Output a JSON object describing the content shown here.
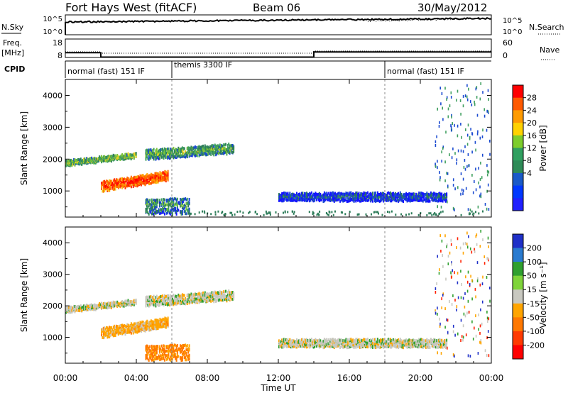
{
  "header": {
    "station": "Fort Hays West (fitACF)",
    "beam": "Beam 06",
    "date": "30/May/2012"
  },
  "panels": {
    "sky": {
      "label": "N.Sky",
      "left_ticks": [
        "10^5",
        "10^0"
      ],
      "right_ticks": [
        "10^5",
        "10^0"
      ],
      "right_label": "N.Search"
    },
    "freq": {
      "label": "Freq.",
      "unit": "[MHz]",
      "left_ticks": [
        "18",
        "8"
      ],
      "right_ticks": [
        "60",
        "0"
      ],
      "right_label": "Nave"
    },
    "cpid": {
      "label": "CPID",
      "modes": [
        {
          "label": "normal (fast) 151 IF",
          "start": 0,
          "end": 6
        },
        {
          "label": "themis 3300 IF",
          "start": 6,
          "end": 18
        },
        {
          "label": "normal (fast) 151 IF",
          "start": 18,
          "end": 24
        }
      ]
    }
  },
  "colorbars": {
    "power": {
      "title": "Power [dB]",
      "ticks": [
        "28",
        "24",
        "20",
        "16",
        "12",
        "8",
        "4"
      ],
      "colors": [
        "#ff0000",
        "#ff5a00",
        "#ff9b00",
        "#ffd200",
        "#7dcd2c",
        "#30a060",
        "#2e8b57",
        "#1a5ac8",
        "#0038ff",
        "#2020ff"
      ]
    },
    "velocity": {
      "title": "Velocity [m s⁻¹]",
      "ticks": [
        "200",
        "100",
        "50",
        "15",
        "-15",
        "-50",
        "-100",
        "-200"
      ],
      "colors": [
        "#1f30c8",
        "#2a7bd0",
        "#2fa02f",
        "#7fd43a",
        "#c8c8c0",
        "#ffa500",
        "#ff7800",
        "#ff3a00",
        "#ff0000"
      ]
    }
  },
  "axes": {
    "yaxis_label": "Slant Range [km]",
    "y_ticks": [
      "4000",
      "3000",
      "2000",
      "1000"
    ],
    "xaxis_label": "Time UT",
    "x_ticks": [
      "00:00",
      "04:00",
      "08:00",
      "12:00",
      "16:00",
      "20:00",
      "00:00"
    ]
  },
  "chart_data": [
    {
      "type": "heatmap",
      "title": "",
      "quantity": "Power",
      "xlabel": "Time UT",
      "ylabel": "Slant Range [km]",
      "xlim": [
        0,
        24
      ],
      "ylim": [
        180,
        4500
      ],
      "colorbar_range": [
        0,
        30
      ],
      "features": [
        {
          "t_start": 0.0,
          "t_end": 4.0,
          "range_start": 1800,
          "range_end": 1950,
          "power": 14
        },
        {
          "t_start": 2.0,
          "t_end": 5.8,
          "range_start": 1000,
          "range_end": 1300,
          "power": 26
        },
        {
          "t_start": 4.5,
          "t_end": 9.5,
          "range_start": 2000,
          "range_end": 2300,
          "power": 12
        },
        {
          "t_start": 4.5,
          "t_end": 7.0,
          "range_start": 300,
          "range_end": 800,
          "power": 10
        },
        {
          "t_start": 12.0,
          "t_end": 21.5,
          "range_start": 700,
          "range_end": 950,
          "power": 6
        }
      ]
    },
    {
      "type": "heatmap",
      "title": "",
      "quantity": "Velocity",
      "xlabel": "Time UT",
      "ylabel": "Slant Range [km]",
      "xlim": [
        0,
        24
      ],
      "ylim": [
        180,
        4500
      ],
      "colorbar_range": [
        -200,
        200
      ],
      "features": [
        {
          "t_start": 0.0,
          "t_end": 4.0,
          "range_start": 1800,
          "range_end": 1950,
          "velocity": 0
        },
        {
          "t_start": 2.0,
          "t_end": 5.8,
          "range_start": 1000,
          "range_end": 1300,
          "velocity": -30
        },
        {
          "t_start": 4.5,
          "t_end": 9.5,
          "range_start": 2000,
          "range_end": 2300,
          "velocity": 0
        },
        {
          "t_start": 4.5,
          "t_end": 7.0,
          "range_start": 300,
          "range_end": 800,
          "velocity": -60
        },
        {
          "t_start": 12.0,
          "t_end": 21.5,
          "range_start": 700,
          "range_end": 950,
          "velocity": 0
        }
      ]
    }
  ]
}
